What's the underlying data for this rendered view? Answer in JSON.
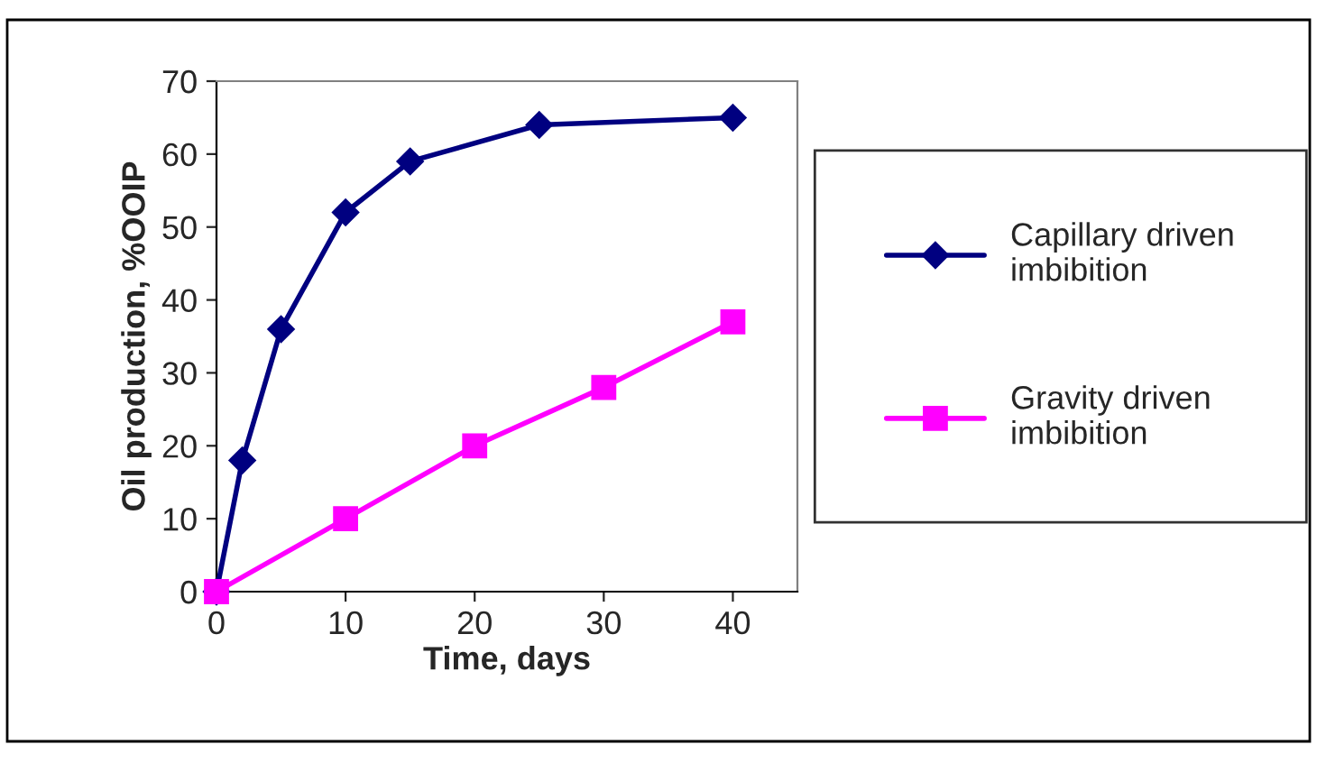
{
  "chart_data": {
    "type": "line",
    "xlabel": "Time, days",
    "ylabel": "Oil production, %OOIP",
    "series": [
      {
        "name": "Capillary driven\nimbibition",
        "color": "#000080",
        "marker": "diamond",
        "x": [
          0,
          2,
          5,
          10,
          15,
          25,
          40
        ],
        "values": [
          0,
          18,
          36,
          52,
          59,
          64,
          65
        ]
      },
      {
        "name": "Gravity driven\nimbibition",
        "color": "#ff00ff",
        "marker": "square",
        "x": [
          0,
          10,
          20,
          30,
          40
        ],
        "values": [
          0,
          10,
          20,
          28,
          37
        ]
      }
    ],
    "xlim": [
      0,
      45
    ],
    "xticks": [
      0,
      10,
      20,
      30,
      40
    ],
    "ylim": [
      0,
      70
    ],
    "yticks": [
      0,
      10,
      20,
      30,
      40,
      50,
      60,
      70
    ],
    "grid": false,
    "legend": "right",
    "line_style": "solid"
  }
}
